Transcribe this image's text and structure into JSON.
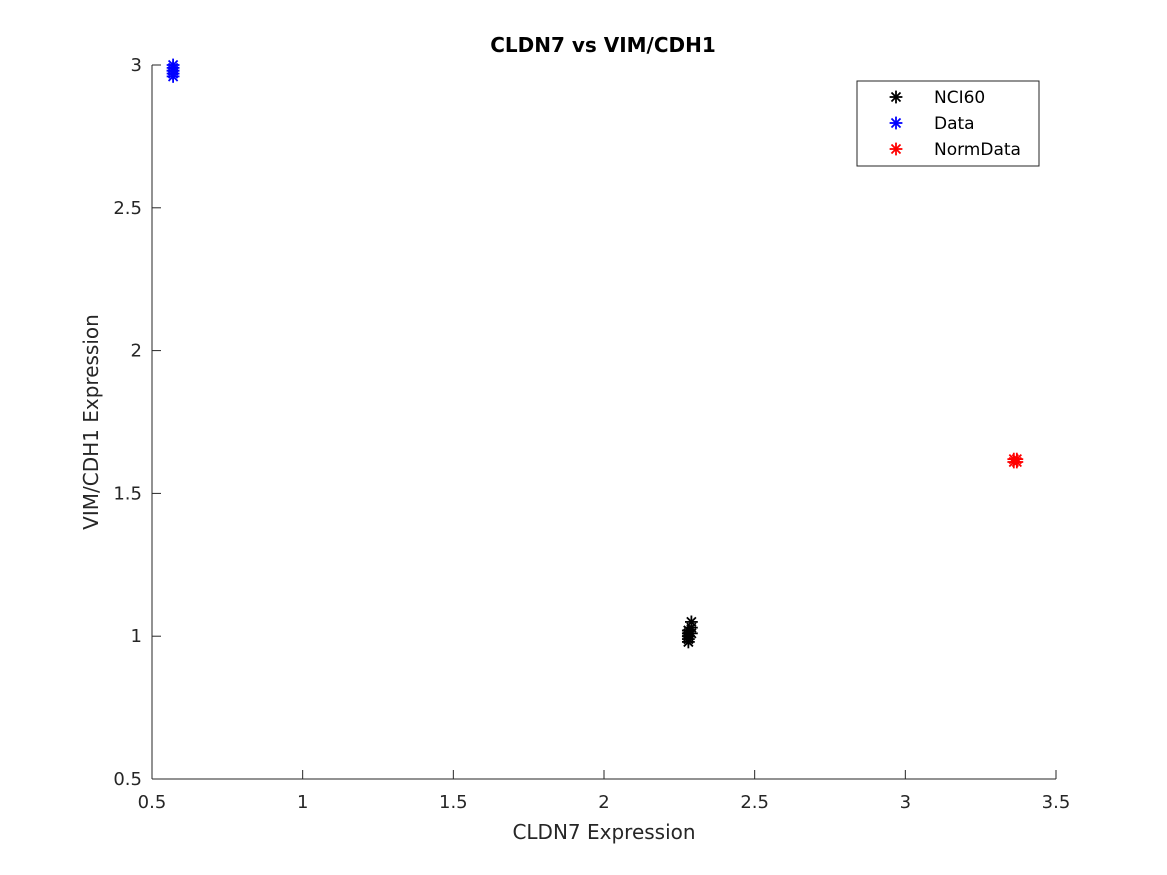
{
  "chart_data": {
    "type": "scatter",
    "title": "CLDN7 vs VIM/CDH1",
    "xlabel": "CLDN7 Expression",
    "ylabel": "VIM/CDH1 Expression",
    "xlim": [
      0.5,
      3.5
    ],
    "ylim": [
      0.5,
      3
    ],
    "xticks": [
      "0.5",
      "1",
      "1.5",
      "2",
      "2.5",
      "3",
      "3.5"
    ],
    "yticks": [
      "0.5",
      "1",
      "1.5",
      "2",
      "2.5",
      "3"
    ],
    "grid": false,
    "legend_position": "top-right",
    "marker": "asterisk",
    "series": [
      {
        "name": "NCI60",
        "color": "#000000",
        "points": [
          [
            2.28,
            0.98
          ],
          [
            2.28,
            0.99
          ],
          [
            2.28,
            1.0
          ],
          [
            2.28,
            1.0
          ],
          [
            2.28,
            1.01
          ],
          [
            2.28,
            1.01
          ],
          [
            2.28,
            1.02
          ],
          [
            2.28,
            1.02
          ],
          [
            2.29,
            1.03
          ],
          [
            2.29,
            1.05
          ],
          [
            2.28,
            1.0
          ],
          [
            2.29,
            1.01
          ]
        ]
      },
      {
        "name": "Data",
        "color": "#0000ff",
        "points": [
          [
            0.57,
            2.96
          ],
          [
            0.57,
            2.97
          ],
          [
            0.57,
            2.98
          ],
          [
            0.57,
            2.99
          ],
          [
            0.57,
            3.0
          ],
          [
            0.57,
            2.98
          ]
        ]
      },
      {
        "name": "NormData",
        "color": "#ff0000",
        "points": [
          [
            3.36,
            1.61
          ],
          [
            3.37,
            1.61
          ],
          [
            3.37,
            1.62
          ],
          [
            3.36,
            1.62
          ]
        ]
      }
    ]
  }
}
